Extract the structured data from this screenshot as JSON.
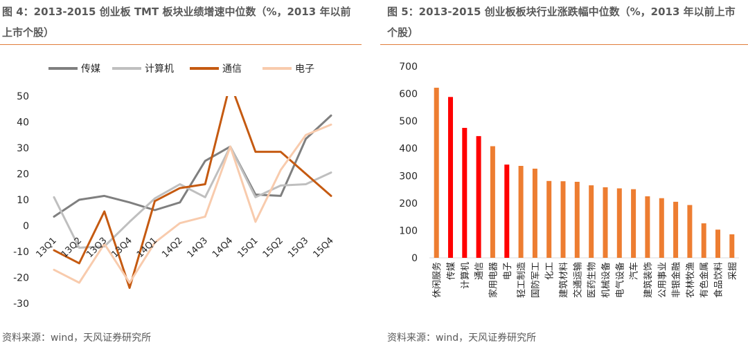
{
  "left_panel": {
    "title": "图 4：2013-2015 创业板 TMT 板块业绩增速中位数（%，2013 年以前上市个股）",
    "source": "资料来源：wind，天风证券研究所"
  },
  "right_panel": {
    "title": "图 5：2013-2015 创业板板块行业涨跌幅中位数（%，2013 年以前上市个股）",
    "source": "资料来源：wind，天风证券研究所"
  },
  "colors": {
    "accent_rule": "#e07b39",
    "chuanmei": "#7f7f7f",
    "jisuanji": "#bfbfbf",
    "tongxin": "#c55a11",
    "dianzi": "#f8cbad",
    "bar_default": "#ed7d31",
    "bar_highlight": "#ff0000"
  },
  "chart_data": [
    {
      "type": "line",
      "categories": [
        "13Q1",
        "13Q2",
        "13Q3",
        "13Q4",
        "14Q1",
        "14Q2",
        "14Q3",
        "14Q4",
        "15Q1",
        "15Q2",
        "15Q3",
        "15Q4"
      ],
      "ylim": [
        -30,
        50
      ],
      "yticks": [
        -30,
        -20,
        -10,
        0,
        10,
        20,
        30,
        40,
        50
      ],
      "legend_position": "top",
      "grid": false,
      "series": [
        {
          "name": "传媒",
          "color": "#7f7f7f",
          "values": [
            3.5,
            10,
            11.5,
            9,
            6,
            9,
            25,
            30.5,
            12,
            11.5,
            33.5,
            42.5
          ]
        },
        {
          "name": "计算机",
          "color": "#bfbfbf",
          "values": [
            11,
            -8.5,
            -8,
            1.5,
            10.5,
            16,
            11,
            30.5,
            11,
            15.5,
            16,
            20.5
          ]
        },
        {
          "name": "通信",
          "color": "#c55a11",
          "values": [
            -9.5,
            -14.5,
            5.5,
            -24,
            9.5,
            14.5,
            16,
            55,
            28.5,
            28.5,
            20,
            11.5
          ]
        },
        {
          "name": "电子",
          "color": "#f8cbad",
          "values": [
            -17,
            -22,
            -7,
            -22,
            -6.5,
            1,
            3.5,
            30.5,
            1.5,
            21.5,
            35,
            39
          ]
        }
      ]
    },
    {
      "type": "bar",
      "categories": [
        "休闲服务",
        "传媒",
        "计算机",
        "通信",
        "家用电器",
        "电子",
        "轻工制造",
        "国防军工",
        "化工",
        "建筑材料",
        "交通运输",
        "医药生物",
        "机械设备",
        "电气设备",
        "汽车",
        "建筑装饰",
        "公用事业",
        "非银金融",
        "农林牧渔",
        "有色金属",
        "食品饮料",
        "采掘"
      ],
      "values": [
        622,
        588,
        475,
        445,
        408,
        341,
        336,
        326,
        281,
        280,
        278,
        265,
        258,
        254,
        251,
        225,
        218,
        205,
        193,
        126,
        103,
        86
      ],
      "highlight": [
        false,
        true,
        true,
        true,
        false,
        true,
        false,
        false,
        false,
        false,
        false,
        false,
        false,
        false,
        false,
        false,
        false,
        false,
        false,
        false,
        false,
        false
      ],
      "ylim": [
        0,
        700
      ],
      "yticks": [
        0,
        100,
        200,
        300,
        400,
        500,
        600,
        700
      ],
      "grid": false
    }
  ]
}
